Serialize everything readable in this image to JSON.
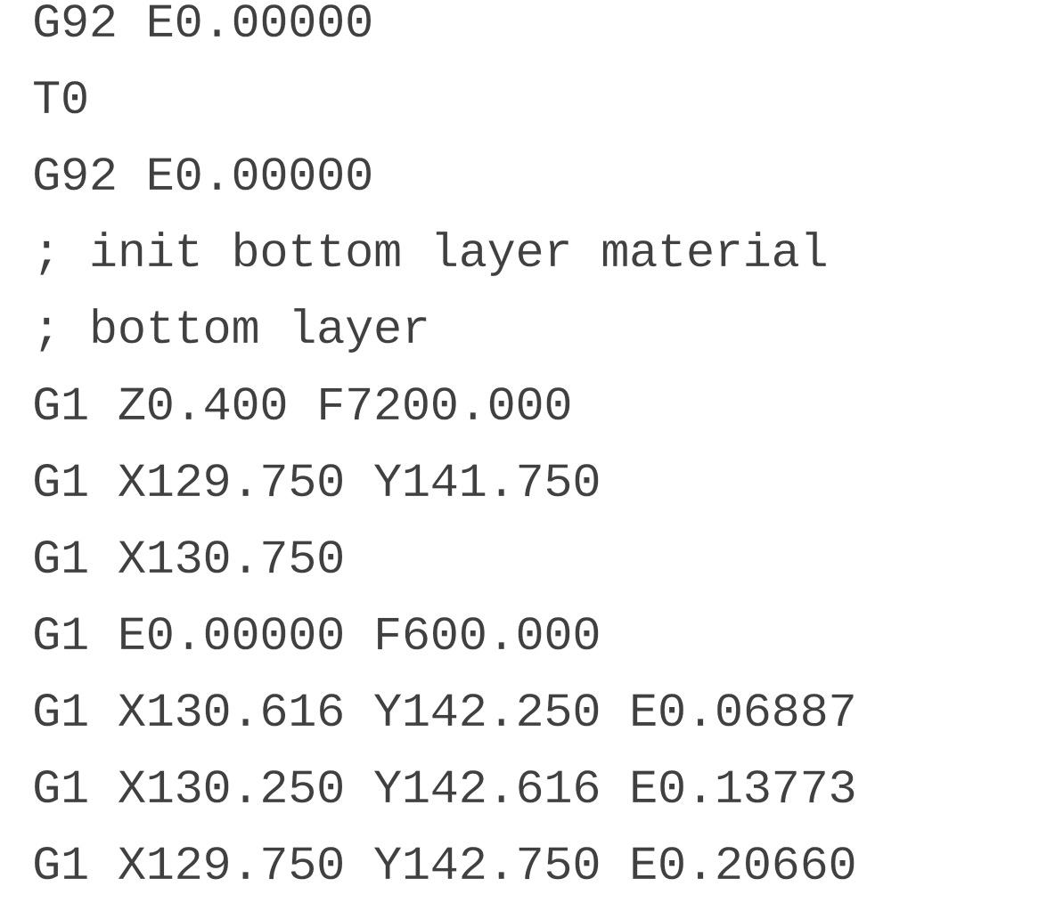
{
  "gcode": {
    "lines": [
      "G92 E0.00000",
      "T0",
      "G92 E0.00000",
      "; init bottom layer material",
      "; bottom layer",
      "G1 Z0.400 F7200.000",
      "G1 X129.750 Y141.750",
      "G1 X130.750",
      "G1 E0.00000 F600.000",
      "G1 X130.616 Y142.250 E0.06887",
      "G1 X130.250 Y142.616 E0.13773",
      "G1 X129.750 Y142.750 E0.20660"
    ]
  }
}
